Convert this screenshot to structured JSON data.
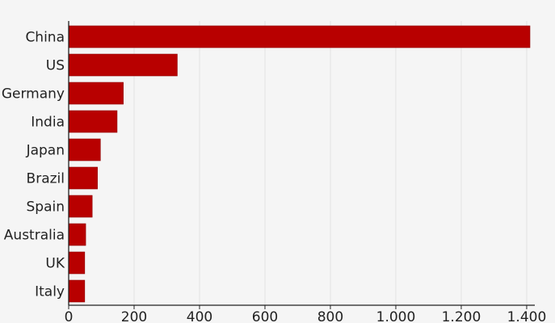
{
  "chart_data": {
    "type": "bar",
    "orientation": "horizontal",
    "title": "",
    "categories": [
      "China",
      "US",
      "Germany",
      "India",
      "Japan",
      "Brazil",
      "Spain",
      "Australia",
      "UK",
      "Italy"
    ],
    "values": [
      1410,
      332,
      167,
      148,
      97,
      88,
      72,
      52,
      49,
      49
    ],
    "xlim": [
      0,
      1410
    ],
    "x_ticks": [
      0,
      200,
      400,
      600,
      800,
      1000,
      1200,
      1400
    ],
    "x_tick_labels": [
      "0",
      "200",
      "400",
      "600",
      "800",
      "1.000",
      "1.200",
      "1.400"
    ],
    "xlabel": "",
    "ylabel": "",
    "grid": true,
    "bar_color": "#b80000",
    "background_color": "#f5f5f5"
  }
}
